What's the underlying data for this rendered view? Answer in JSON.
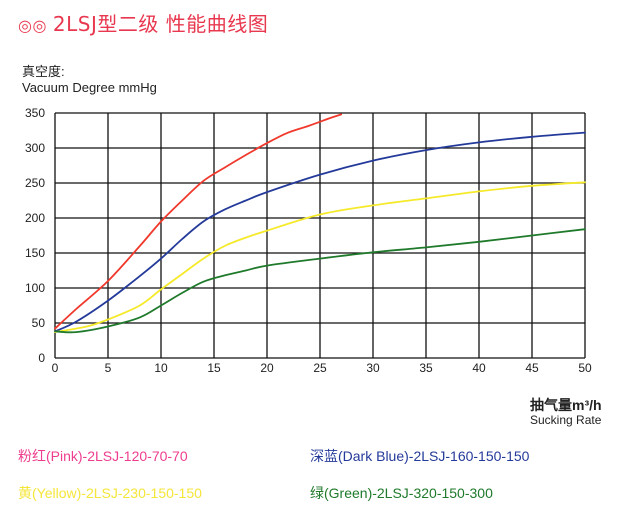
{
  "header": {
    "circles": "◎◎",
    "title": "2LSJ型二级  性能曲线图"
  },
  "axis": {
    "y_title_cn": "真空度:",
    "y_title_en": "Vacuum Degree mmHg",
    "x_title_cn": "抽气量m³/h",
    "x_title_en": "Sucking Rate"
  },
  "colors": {
    "pink": "#f0382b",
    "dark_blue": "#243a9a",
    "yellow": "#f5ea2a",
    "green": "#1f7a2b",
    "pink_text": "#ee3d8f",
    "yellow_text": "#f5e63a",
    "green_text": "#1f7a2b",
    "blue_text": "#243a9a"
  },
  "legend": [
    {
      "label": "粉红(Pink)-2LSJ-120-70-70",
      "color_key": "pink_text"
    },
    {
      "label": "深蓝(Dark Blue)-2LSJ-160-150-150",
      "color_key": "blue_text"
    },
    {
      "label": "黄(Yellow)-2LSJ-230-150-150",
      "color_key": "yellow_text"
    },
    {
      "label": "绿(Green)-2LSJ-320-150-300",
      "color_key": "green_text"
    }
  ],
  "chart_data": {
    "type": "line",
    "xlabel": "抽气量m³/h Sucking Rate",
    "ylabel": "真空度: Vacuum Degree mmHg",
    "xlim": [
      0,
      50
    ],
    "ylim": [
      0,
      350
    ],
    "xticks": [
      0,
      5,
      10,
      15,
      20,
      25,
      30,
      35,
      40,
      45,
      50
    ],
    "yticks": [
      0,
      50,
      100,
      150,
      200,
      250,
      300,
      350
    ],
    "grid": true,
    "series": [
      {
        "name": "粉红(Pink)-2LSJ-120-70-70",
        "color": "#f0382b",
        "x": [
          0,
          2,
          5,
          8,
          10,
          12,
          14,
          16,
          18,
          20,
          22,
          24,
          26,
          27
        ],
        "y": [
          42,
          70,
          110,
          160,
          195,
          225,
          253,
          272,
          290,
          307,
          322,
          332,
          343,
          348
        ]
      },
      {
        "name": "深蓝(Dark Blue)-2LSJ-160-150-150",
        "color": "#243a9a",
        "x": [
          0,
          2,
          5,
          8,
          10,
          12,
          14,
          16,
          18,
          20,
          25,
          30,
          35,
          40,
          45,
          50
        ],
        "y": [
          38,
          52,
          82,
          117,
          142,
          170,
          195,
          212,
          225,
          237,
          262,
          282,
          297,
          308,
          316,
          322
        ]
      },
      {
        "name": "黄(Yellow)-2LSJ-230-150-150",
        "color": "#f5ea2a",
        "x": [
          0,
          3,
          5,
          8,
          10,
          12,
          14,
          16,
          18,
          20,
          25,
          30,
          35,
          40,
          45,
          50
        ],
        "y": [
          37,
          45,
          55,
          75,
          98,
          120,
          142,
          160,
          172,
          182,
          205,
          218,
          228,
          238,
          246,
          251
        ]
      },
      {
        "name": "绿(Green)-2LSJ-320-150-300",
        "color": "#1f7a2b",
        "x": [
          0,
          2,
          5,
          8,
          10,
          12,
          14,
          16,
          18,
          20,
          25,
          30,
          35,
          40,
          45,
          50
        ],
        "y": [
          38,
          37,
          45,
          58,
          75,
          93,
          109,
          118,
          125,
          132,
          142,
          151,
          158,
          166,
          175,
          184
        ]
      }
    ]
  }
}
